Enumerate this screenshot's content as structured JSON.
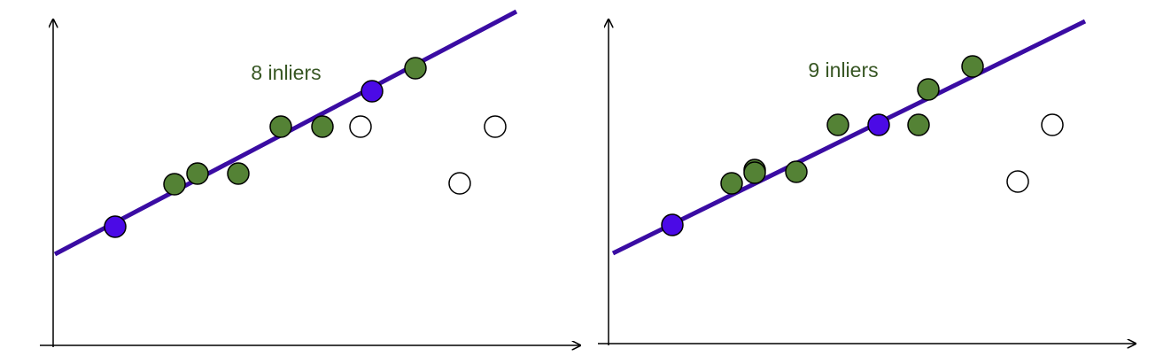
{
  "panels": [
    {
      "label": "8 inliers"
    },
    {
      "label": "9 inliers"
    }
  ]
}
